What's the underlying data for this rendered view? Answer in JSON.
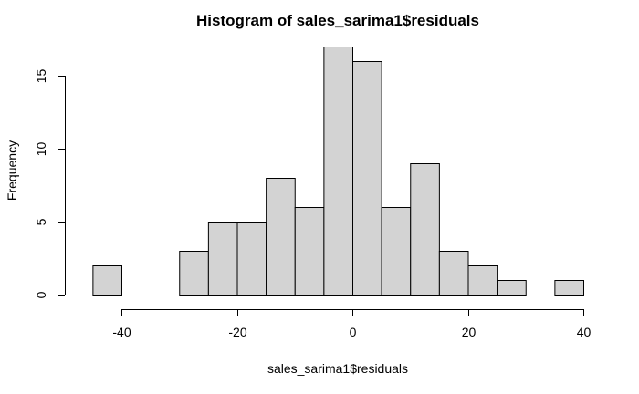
{
  "chart_data": {
    "type": "bar",
    "title": "Histogram of sales_sarima1$residuals",
    "xlabel": "sales_sarima1$residuals",
    "ylabel": "Frequency",
    "bin_edges": [
      -45,
      -40,
      -35,
      -30,
      -25,
      -20,
      -15,
      -10,
      -5,
      0,
      5,
      10,
      15,
      20,
      25,
      30,
      35,
      40
    ],
    "values": [
      2,
      0,
      0,
      3,
      5,
      5,
      8,
      6,
      17,
      16,
      6,
      9,
      3,
      2,
      1,
      0,
      1
    ],
    "x_ticks": [
      "-40",
      "-20",
      "0",
      "20",
      "40"
    ],
    "y_ticks": [
      "0",
      "5",
      "10",
      "15"
    ],
    "xlim": [
      -40,
      40
    ],
    "ylim": [
      0,
      15
    ],
    "grid": false,
    "bar_fill": "#d3d3d3",
    "bar_stroke": "#000000"
  }
}
